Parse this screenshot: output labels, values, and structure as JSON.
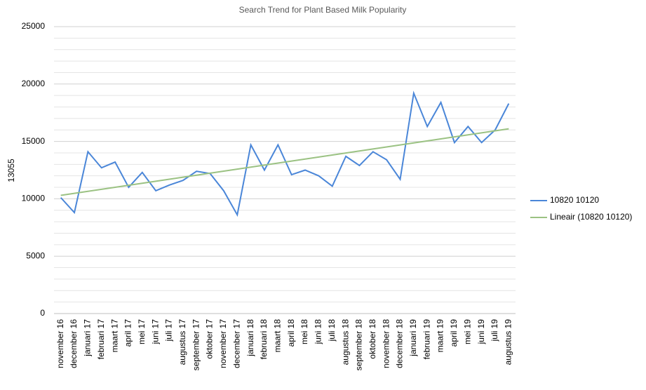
{
  "chart_data": {
    "type": "line",
    "title": "Search Trend for Plant Based Milk Popularity",
    "y_label": "13055",
    "categories": [
      "november 16",
      "december 16",
      "januari 17",
      "februari 17",
      "maart 17",
      "april 17",
      "mei 17",
      "juni 17",
      "juli 17",
      "augustus 17",
      "september 17",
      "oktober 17",
      "november 17",
      "december 17",
      "januari 18",
      "februari 18",
      "maart 18",
      "april 18",
      "mei 18",
      "juni 18",
      "juli 18",
      "augustus 18",
      "september 18",
      "oktober 18",
      "november 18",
      "december 18",
      "januari 19",
      "februari 19",
      "maart 19",
      "april 19",
      "mei 19",
      "juni 19",
      "juli 19",
      "augustus 19"
    ],
    "series": [
      {
        "name": "10820 10120",
        "color": "#4a86d8",
        "values": [
          10100,
          8800,
          14100,
          12700,
          13200,
          11000,
          12300,
          10700,
          11200,
          11600,
          12400,
          12200,
          10700,
          8600,
          14700,
          12500,
          14700,
          12100,
          12500,
          12000,
          11100,
          13700,
          12900,
          14100,
          13400,
          11700,
          19200,
          16300,
          18400,
          14900,
          16300,
          14900,
          16000,
          18300
        ]
      },
      {
        "name": "Lineair (10820 10120)",
        "color": "#9bc283",
        "values": [
          10300,
          10476,
          10652,
          10827,
          11003,
          11179,
          11355,
          11530,
          11706,
          11882,
          12058,
          12233,
          12409,
          12585,
          12761,
          12936,
          13112,
          13288,
          13464,
          13639,
          13815,
          13991,
          14167,
          14342,
          14518,
          14694,
          14870,
          15045,
          15221,
          15397,
          15573,
          15748,
          15924,
          16100
        ]
      }
    ],
    "ylim": [
      0,
      25000
    ],
    "yticks": [
      0,
      5000,
      10000,
      15000,
      20000,
      25000
    ],
    "minor_yticks": [
      1000,
      2000,
      3000,
      4000,
      6000,
      7000,
      8000,
      9000,
      11000,
      12000,
      13000,
      14000,
      16000,
      17000,
      18000,
      19000,
      21000,
      22000,
      23000,
      24000
    ],
    "grid": true,
    "legend": "right"
  }
}
